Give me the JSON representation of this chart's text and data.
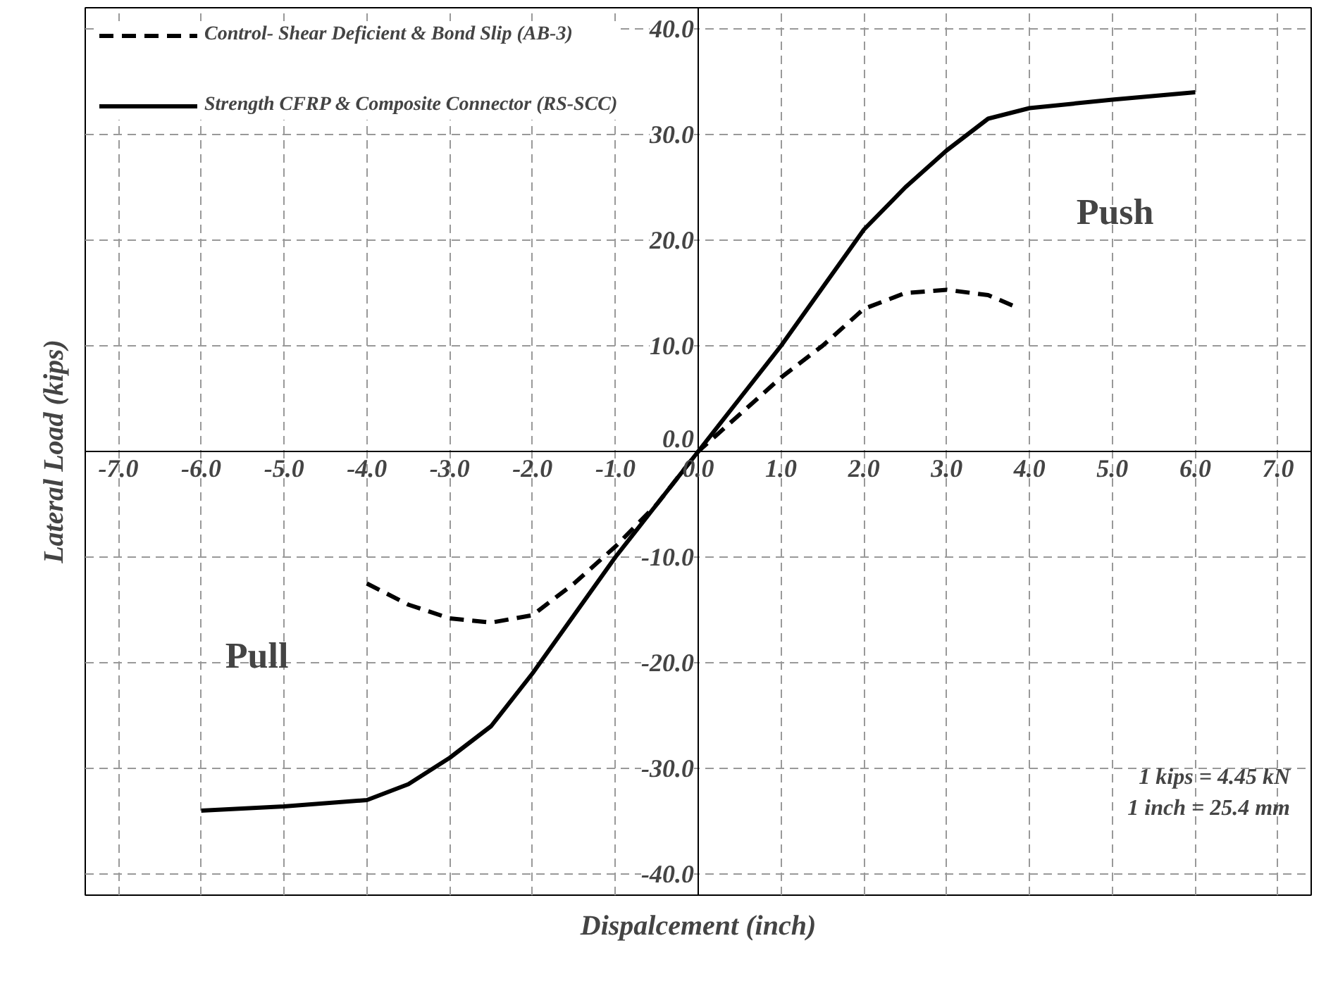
{
  "chart_data": {
    "type": "line",
    "xlabel": "Dispalcement (inch)",
    "ylabel": "Lateral Load (kips)",
    "xlim": [
      -7.4,
      7.4
    ],
    "ylim": [
      -42,
      42
    ],
    "xticks": [
      {
        "value": -7,
        "label": "-7.0"
      },
      {
        "value": -6,
        "label": "-6.0"
      },
      {
        "value": -5,
        "label": "-5.0"
      },
      {
        "value": -4,
        "label": "-4.0"
      },
      {
        "value": -3,
        "label": "-3.0"
      },
      {
        "value": -2,
        "label": "-2.0"
      },
      {
        "value": -1,
        "label": "-1.0"
      },
      {
        "value": 0,
        "label": "0.0"
      },
      {
        "value": 1,
        "label": "1.0"
      },
      {
        "value": 2,
        "label": "2.0"
      },
      {
        "value": 3,
        "label": "3.0"
      },
      {
        "value": 4,
        "label": "4.0"
      },
      {
        "value": 5,
        "label": "5.0"
      },
      {
        "value": 6,
        "label": "6.0"
      },
      {
        "value": 7,
        "label": "7.0"
      }
    ],
    "yticks": [
      {
        "value": -40,
        "label": "-40.0"
      },
      {
        "value": -30,
        "label": "-30.0"
      },
      {
        "value": -20,
        "label": "-20.0"
      },
      {
        "value": -10,
        "label": "-10.0"
      },
      {
        "value": 0,
        "label": "0.0"
      },
      {
        "value": 10,
        "label": "10.0"
      },
      {
        "value": 20,
        "label": "20.0"
      },
      {
        "value": 30,
        "label": "30.0"
      },
      {
        "value": 40,
        "label": "40.0"
      }
    ],
    "grid": true,
    "legend": "top left",
    "marker": "none",
    "series": [
      {
        "name": "Control- Shear Deficient & Bond Slip (AB-3)",
        "color": "#000000",
        "line_style": "dashed",
        "x": [
          -4,
          -3.5,
          -3,
          -2.5,
          -2,
          -1.5,
          -1,
          -0.5,
          0,
          0.5,
          1,
          1.5,
          2,
          2.5,
          3,
          3.5,
          3.8
        ],
        "values": [
          -12.5,
          -14.5,
          -15.8,
          -16.2,
          -15.5,
          -12.5,
          -9,
          -5,
          0,
          3.5,
          7,
          10,
          13.5,
          15,
          15.3,
          14.8,
          13.8
        ]
      },
      {
        "name": "Strength CFRP & Composite Connector (RS-SCC)",
        "color": "#000000",
        "line_style": "solid",
        "x": [
          -6,
          -5,
          -4,
          -3.5,
          -3,
          -2.5,
          -2,
          -1.5,
          -1,
          -0.5,
          0,
          0.5,
          1,
          1.5,
          2,
          2.5,
          3,
          3.5,
          4,
          5,
          6
        ],
        "values": [
          -34,
          -33.6,
          -33,
          -31.5,
          -29,
          -26,
          -21,
          -15.5,
          -10,
          -5,
          0,
          5,
          10,
          15.5,
          21,
          25,
          28.5,
          31.5,
          32.5,
          33.3,
          34
        ]
      }
    ],
    "annotations": [
      "Push",
      "Pull",
      "1 kips = 4.45 kN",
      "1 inch = 25.4 mm"
    ]
  }
}
